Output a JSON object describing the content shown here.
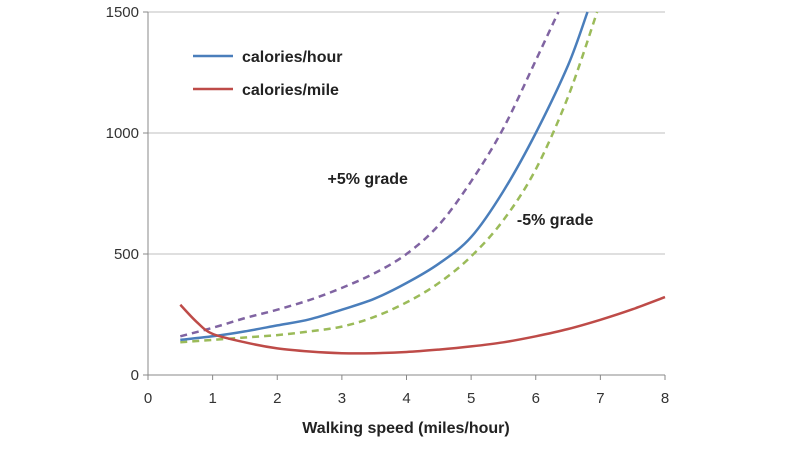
{
  "chart_data": {
    "type": "line",
    "title": "",
    "xlabel": "Walking speed (miles/hour)",
    "ylabel": "",
    "xlim": [
      0,
      8
    ],
    "ylim": [
      0,
      1500
    ],
    "x_ticks": [
      0,
      1,
      2,
      3,
      4,
      5,
      6,
      7,
      8
    ],
    "y_ticks": [
      0,
      500,
      1000,
      1500
    ],
    "grid": "horizontal",
    "legend_position": "top-left",
    "series": [
      {
        "name": "calories/hour",
        "color": "#4a7ebb",
        "style": "solid",
        "x": [
          0.5,
          1,
          1.5,
          2,
          2.5,
          3,
          3.5,
          4,
          4.5,
          5,
          5.5,
          6,
          6.5,
          6.8
        ],
        "y": [
          145,
          160,
          180,
          205,
          230,
          270,
          315,
          380,
          460,
          570,
          760,
          1000,
          1280,
          1500
        ]
      },
      {
        "name": "calories/mile",
        "color": "#be4b48",
        "style": "solid",
        "x": [
          0.5,
          0.75,
          1,
          1.5,
          2,
          2.5,
          3,
          3.5,
          4,
          4.5,
          5,
          5.5,
          6,
          6.5,
          7,
          7.5,
          8
        ],
        "y": [
          290,
          220,
          170,
          135,
          110,
          97,
          90,
          90,
          95,
          105,
          118,
          135,
          160,
          190,
          228,
          272,
          322
        ]
      },
      {
        "label": "+5% grade",
        "color": "#8064a2",
        "style": "dashed",
        "x": [
          0.5,
          1,
          1.5,
          2,
          2.5,
          3,
          3.5,
          4,
          4.5,
          5,
          5.5,
          6,
          6.35
        ],
        "y": [
          160,
          195,
          235,
          270,
          310,
          360,
          420,
          500,
          620,
          800,
          1020,
          1300,
          1500
        ]
      },
      {
        "label": "-5% grade",
        "color": "#9bbb59",
        "style": "dashed",
        "x": [
          0.5,
          1,
          1.5,
          2,
          2.5,
          3,
          3.5,
          4,
          4.5,
          5,
          5.5,
          6,
          6.5,
          6.95
        ],
        "y": [
          135,
          145,
          155,
          165,
          180,
          200,
          240,
          300,
          380,
          490,
          640,
          850,
          1150,
          1500
        ]
      }
    ],
    "annotations": [
      {
        "text": "+5% grade",
        "x": 3.4,
        "y": 790
      },
      {
        "text": "-5% grade",
        "x": 6.3,
        "y": 620
      }
    ]
  }
}
